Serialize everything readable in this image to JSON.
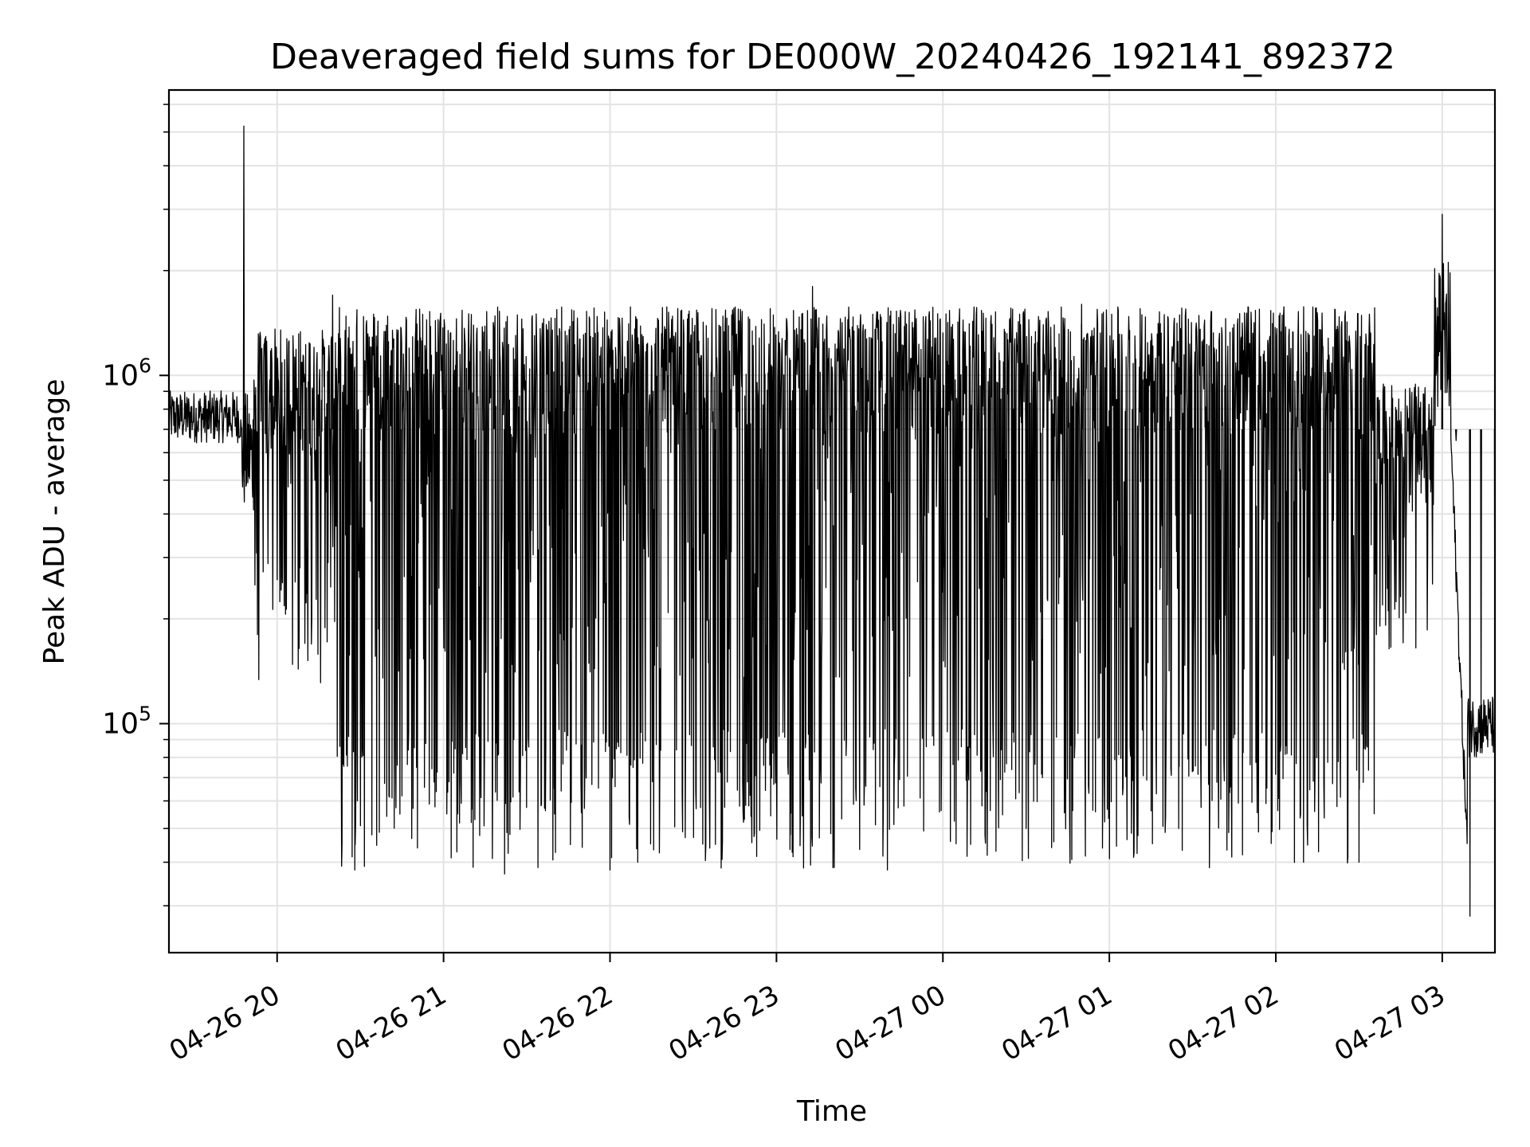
{
  "chart_data": {
    "type": "line",
    "title": "Deaveraged field sums for DE000W_20240426_192141_892372",
    "xlabel": "Time",
    "ylabel": "Peak ADU - average",
    "yscale": "log",
    "ylim": [
      22000,
      6600000
    ],
    "xlim": [
      "2024-04-26 19:21",
      "2024-04-27 03:19"
    ],
    "grid": true,
    "line_color": "#000000",
    "x_ticks": [
      "04-26 20",
      "04-26 21",
      "04-26 22",
      "04-26 23",
      "04-27 00",
      "04-27 01",
      "04-27 02",
      "04-27 03"
    ],
    "y_ticks": [
      {
        "base": "10",
        "exp": "5",
        "value": 100000
      },
      {
        "base": "10",
        "exp": "6",
        "value": 1000000
      }
    ],
    "series": [
      {
        "description": "Field sums, fluctuating between roughly 4e4 and 1.6e6 most of the night",
        "points": [
          {
            "t": "2024-04-26 19:21",
            "v": 800000
          },
          {
            "t": "2024-04-26 19:35",
            "v": 750000
          },
          {
            "t": "2024-04-26 19:48",
            "v": 5200000
          },
          {
            "t": "2024-04-26 19:52",
            "v": 250000
          },
          {
            "t": "2024-04-26 20:10",
            "v": 170000
          },
          {
            "t": "2024-04-26 20:20",
            "v": 1700000
          },
          {
            "t": "2024-04-26 20:28",
            "v": 38000
          },
          {
            "t": "2024-04-26 20:45",
            "v": 62000
          },
          {
            "t": "2024-04-26 21:10",
            "v": 52000
          },
          {
            "t": "2024-04-26 21:22",
            "v": 37000
          },
          {
            "t": "2024-04-26 21:40",
            "v": 55000
          },
          {
            "t": "2024-04-26 22:00",
            "v": 38000
          },
          {
            "t": "2024-04-26 22:10",
            "v": 40000
          },
          {
            "t": "2024-04-26 22:38",
            "v": 45000
          },
          {
            "t": "2024-04-26 23:05",
            "v": 48000
          },
          {
            "t": "2024-04-26 23:13",
            "v": 1800000
          },
          {
            "t": "2024-04-26 23:40",
            "v": 38000
          },
          {
            "t": "2024-04-27 00:10",
            "v": 45000
          },
          {
            "t": "2024-04-27 00:30",
            "v": 50000
          },
          {
            "t": "2024-04-27 00:50",
            "v": 1600000
          },
          {
            "t": "2024-04-27 01:25",
            "v": 50000
          },
          {
            "t": "2024-04-27 01:48",
            "v": 42000
          },
          {
            "t": "2024-04-27 02:10",
            "v": 40000
          },
          {
            "t": "2024-04-27 02:30",
            "v": 40000
          },
          {
            "t": "2024-04-27 02:45",
            "v": 500000
          },
          {
            "t": "2024-04-27 03:00",
            "v": 2900000
          },
          {
            "t": "2024-04-27 03:05",
            "v": 650000
          },
          {
            "t": "2024-04-27 03:10",
            "v": 28000
          },
          {
            "t": "2024-04-27 03:14",
            "v": 100000
          },
          {
            "t": "2024-04-27 03:19",
            "v": 110000
          }
        ]
      }
    ]
  }
}
